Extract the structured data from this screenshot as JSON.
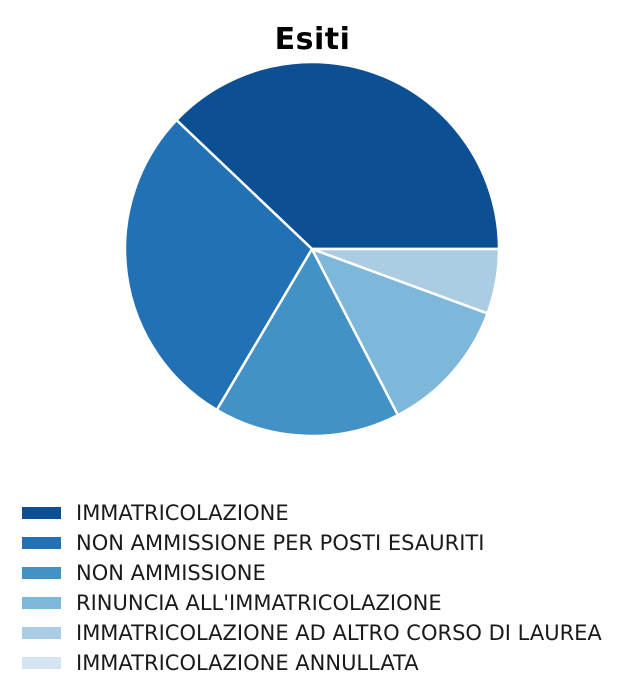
{
  "figure": {
    "background": "#ffffff",
    "title_color": "#000000"
  },
  "chart_data": {
    "type": "pie",
    "title": "Esiti",
    "categories": [
      "IMMATRICOLAZIONE",
      "NON AMMISSIONE PER POSTI ESAURITI",
      "NON AMMISSIONE",
      "RINUNCIA ALL'IMMATRICOLAZIONE",
      "IMMATRICOLAZIONE AD ALTRO CORSO DI LAUREA",
      "IMMATRICOLAZIONE ANNULLATA"
    ],
    "values_percent": [
      37.9,
      28.6,
      16.1,
      11.8,
      5.6,
      0.0
    ],
    "colors": [
      "#0c4f93",
      "#2171b4",
      "#4292c6",
      "#7db7da",
      "#abcde3",
      "#d5e4f2"
    ],
    "start_angle_deg": 0,
    "direction": "counterclockwise",
    "wedge_edge_color": "#ffffff",
    "wedge_edge_width": 2.5,
    "legend_position": "lower-left",
    "grid": false,
    "axes": false
  }
}
